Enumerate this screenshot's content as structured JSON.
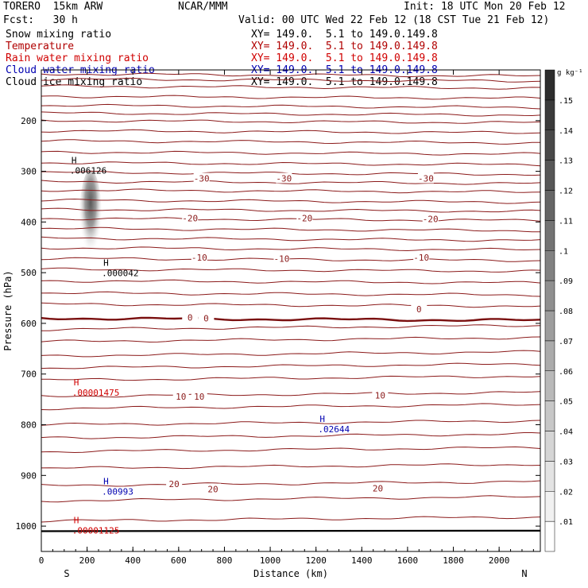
{
  "header": {
    "model": "TORERO  15km ARW",
    "org": "NCAR/MMM",
    "init": "Init: 18 UTC Mon 20 Feb 12",
    "fcst": "Fcst:   30 h",
    "valid": "Valid: 00 UTC Wed 22 Feb 12 (18 CST Tue 21 Feb 12)"
  },
  "legend": [
    {
      "name": "Snow mixing ratio",
      "xy": "XY= 149.0.  5.1 to 149.0.149.8",
      "color": "#000000"
    },
    {
      "name": "Temperature",
      "xy": "XY= 149.0.  5.1 to 149.0.149.8",
      "color": "#b00000"
    },
    {
      "name": "Rain water mixing ratio",
      "xy": "XY= 149.0.  5.1 to 149.0.149.8",
      "color": "#d00000"
    },
    {
      "name": "Cloud water mixing ratio",
      "xy": "XY= 149.0.  5.1 to 149.0.149.8",
      "color": "#0000b0"
    },
    {
      "name": "Cloud ice mixing ratio",
      "xy": "XY= 149.0.  5.1 to 149.0.149.8",
      "color": "#000000"
    }
  ],
  "chart_data": {
    "type": "cross-section",
    "xlabel": "Distance (km)",
    "ylabel": "Pressure (hPa)",
    "xlim": [
      0,
      2180
    ],
    "ylim": [
      1050,
      100
    ],
    "x_ticks": [
      0,
      200,
      400,
      600,
      800,
      1000,
      1200,
      1400,
      1600,
      1800,
      2000
    ],
    "y_ticks": [
      200,
      300,
      400,
      500,
      600,
      700,
      800,
      900,
      1000
    ],
    "x_end_labels": {
      "left": "S",
      "right": "N"
    },
    "colorbar": {
      "unit": "g kg⁻¹",
      "ticks": [
        ".01",
        ".02",
        ".03",
        ".04",
        ".05",
        ".06",
        ".07",
        ".08",
        ".09",
        ".1",
        ".11",
        ".12",
        ".13",
        ".14",
        ".15"
      ]
    },
    "temperature_isotherm_labels": [
      {
        "text": "-30",
        "x": 700,
        "p": 314
      },
      {
        "text": "-30",
        "x": 1060,
        "p": 314
      },
      {
        "text": "-30",
        "x": 1680,
        "p": 314
      },
      {
        "text": "-20",
        "x": 650,
        "p": 392
      },
      {
        "text": "-20",
        "x": 1150,
        "p": 392
      },
      {
        "text": "-20",
        "x": 1700,
        "p": 394
      },
      {
        "text": "-10",
        "x": 690,
        "p": 470
      },
      {
        "text": "-10",
        "x": 1050,
        "p": 472
      },
      {
        "text": "-10",
        "x": 1660,
        "p": 470
      },
      {
        "text": "0",
        "x": 650,
        "p": 588
      },
      {
        "text": "0",
        "x": 720,
        "p": 590
      },
      {
        "text": "0",
        "x": 1650,
        "p": 572
      },
      {
        "text": "10",
        "x": 610,
        "p": 744
      },
      {
        "text": "10",
        "x": 690,
        "p": 744
      },
      {
        "text": "10",
        "x": 1480,
        "p": 742
      },
      {
        "text": "20",
        "x": 580,
        "p": 917
      },
      {
        "text": "20",
        "x": 750,
        "p": 927
      },
      {
        "text": "20",
        "x": 1470,
        "p": 925
      }
    ],
    "extrema": [
      {
        "field": "snow",
        "label": "H",
        "value": ".006126",
        "x": 180,
        "p": 300,
        "color": "#000000"
      },
      {
        "field": "cloud_ice",
        "label": "H",
        "value": ".000042",
        "x": 320,
        "p": 502,
        "color": "#000000"
      },
      {
        "field": "rain",
        "label": "H",
        "value": ".00001475",
        "x": 190,
        "p": 738,
        "color": "#d00000"
      },
      {
        "field": "cloud_water",
        "label": "H",
        "value": ".02644",
        "x": 1265,
        "p": 810,
        "color": "#0000b0"
      },
      {
        "field": "cloud_water",
        "label": "H",
        "value": ".00993",
        "x": 320,
        "p": 933,
        "color": "#0000b0"
      },
      {
        "field": "rain",
        "label": "H",
        "value": ".00001125",
        "x": 190,
        "p": 1010,
        "color": "#d00000"
      }
    ],
    "isotherm_base_pressures": [
      108,
      118,
      132,
      152,
      170,
      185,
      200,
      220,
      240,
      262,
      283,
      302,
      320,
      337,
      357,
      375,
      393,
      413,
      432,
      451,
      472,
      493,
      516,
      540,
      562,
      590,
      612,
      636,
      664,
      688,
      712,
      744,
      768,
      800,
      826,
      853,
      886,
      920,
      950,
      990
    ],
    "freezing_level_pressure": 590
  },
  "colors": {
    "isotherm": "#8b1a1a",
    "freezing_line": "#7a0f0f",
    "ground": "#000000"
  }
}
